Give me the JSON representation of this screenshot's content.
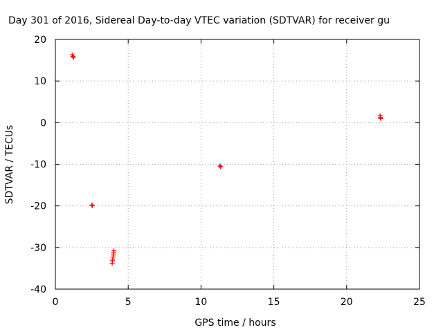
{
  "chart_data": {
    "type": "scatter",
    "title": "Day 301 of 2016, Sidereal Day-to-day VTEC variation (SDTVAR) for receiver gu",
    "xlabel": "GPS time / hours",
    "ylabel": "SDTVAR / TECUs",
    "xlim": [
      0,
      25
    ],
    "ylim": [
      -40,
      20
    ],
    "xticks": [
      0,
      5,
      10,
      15,
      20,
      25
    ],
    "yticks": [
      -40,
      -30,
      -20,
      -10,
      0,
      10,
      20
    ],
    "xtick_labels": [
      "0",
      "5",
      "10",
      "15",
      "20",
      "25"
    ],
    "ytick_labels": [
      "-40",
      "-30",
      "-20",
      "-10",
      "0",
      "10",
      "20"
    ],
    "grid": true,
    "marker": "+",
    "color": "#ff0000",
    "series": [
      {
        "name": "SDTVAR",
        "points": [
          {
            "x": 1.15,
            "y": 16.3
          },
          {
            "x": 1.2,
            "y": 15.9
          },
          {
            "x": 1.25,
            "y": 15.7
          },
          {
            "x": 2.5,
            "y": -19.8
          },
          {
            "x": 2.55,
            "y": -19.9
          },
          {
            "x": 3.9,
            "y": -33.8
          },
          {
            "x": 3.92,
            "y": -33.2
          },
          {
            "x": 3.94,
            "y": -32.8
          },
          {
            "x": 3.96,
            "y": -32.3
          },
          {
            "x": 3.98,
            "y": -31.8
          },
          {
            "x": 4.0,
            "y": -31.3
          },
          {
            "x": 4.02,
            "y": -30.8
          },
          {
            "x": 11.3,
            "y": -10.4
          },
          {
            "x": 11.35,
            "y": -10.6
          },
          {
            "x": 22.3,
            "y": 1.7
          },
          {
            "x": 22.32,
            "y": 1.3
          },
          {
            "x": 22.34,
            "y": 1.0
          }
        ]
      }
    ]
  }
}
